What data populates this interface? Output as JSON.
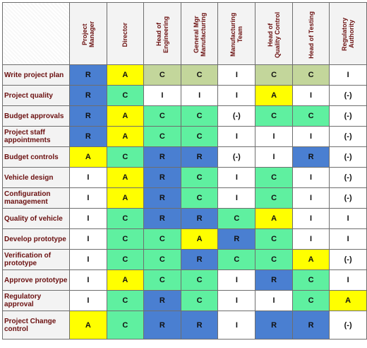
{
  "columns": [
    "Project\nManager",
    "Director",
    "Head of\nEngineering",
    "General Mgr\nManufacturing",
    "Manufacturing\nTeam",
    "Head of\nQuality Control",
    "Head of Testing",
    "Regulatory\nAuthority"
  ],
  "rows": [
    {
      "task": "Write project plan",
      "cells": [
        "R",
        "A",
        "C",
        "C",
        "I",
        "C",
        "C",
        "I"
      ]
    },
    {
      "task": "Project quality",
      "cells": [
        "R",
        "C",
        "I",
        "I",
        "I",
        "A",
        "I",
        "(-)"
      ]
    },
    {
      "task": "Budget approvals",
      "cells": [
        "R",
        "A",
        "C",
        "C",
        "(-)",
        "C",
        "C",
        "(-)"
      ]
    },
    {
      "task": "Project staff appointments",
      "cells": [
        "R",
        "A",
        "C",
        "C",
        "I",
        "I",
        "I",
        "(-)"
      ]
    },
    {
      "task": "Budget controls",
      "cells": [
        "A",
        "C",
        "R",
        "R",
        "(-)",
        "I",
        "R",
        "(-)"
      ]
    },
    {
      "task": "Vehicle design",
      "cells": [
        "I",
        "A",
        "R",
        "C",
        "I",
        "C",
        "I",
        "(-)"
      ]
    },
    {
      "task": "Configuration management",
      "cells": [
        "I",
        "A",
        "R",
        "C",
        "I",
        "C",
        "I",
        "(-)"
      ]
    },
    {
      "task": "Quality of vehicle",
      "cells": [
        "I",
        "C",
        "R",
        "R",
        "C",
        "A",
        "I",
        "I"
      ]
    },
    {
      "task": "Develop prototype",
      "cells": [
        "I",
        "C",
        "C",
        "A",
        "R",
        "C",
        "I",
        "I"
      ]
    },
    {
      "task": "Verification of prototype",
      "cells": [
        "I",
        "C",
        "C",
        "R",
        "C",
        "C",
        "A",
        "(-)"
      ]
    },
    {
      "task": "Approve prototype",
      "cells": [
        "I",
        "A",
        "C",
        "C",
        "I",
        "R",
        "C",
        "I"
      ]
    },
    {
      "task": "Regulatory approval",
      "cells": [
        "I",
        "C",
        "R",
        "C",
        "I",
        "I",
        "C",
        "A"
      ]
    },
    {
      "task": "Project Change control",
      "cells": [
        "A",
        "C",
        "R",
        "R",
        "I",
        "R",
        "R",
        "(-)"
      ]
    }
  ],
  "colors": {
    "R": "#4a7fd1",
    "A": "#ffff00",
    "C": "#5ff0a0",
    "C_plan_row": "#c3d69b",
    "I": "#ffffff",
    "header_text": "#6b1010",
    "header_bg": "#f3f3f3"
  }
}
